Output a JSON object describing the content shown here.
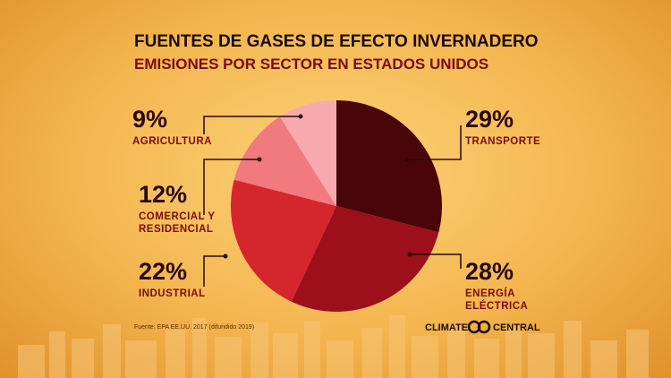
{
  "chart_data": {
    "type": "pie",
    "title": "FUENTES DE GASES DE EFECTO INVERNADERO",
    "subtitle": "EMISIONES POR SECTOR EN ESTADOS UNIDOS",
    "categories": [
      "TRANSPORTE",
      "ENERGÍA ELÉCTRICA",
      "INDUSTRIAL",
      "COMERCIAL Y RESIDENCIAL",
      "AGRICULTURA"
    ],
    "values": [
      29,
      28,
      22,
      12,
      9
    ],
    "value_labels": [
      "29%",
      "28%",
      "22%",
      "12%",
      "9%"
    ],
    "colors": [
      "#4a0509",
      "#9c0f1b",
      "#d6262d",
      "#f07a80",
      "#f6aaae"
    ],
    "source": "Fuente: EPA EE.UU. 2017 (difundido 2019)"
  },
  "logo": {
    "left": "CLIMATE",
    "right": "CENTRAL"
  }
}
